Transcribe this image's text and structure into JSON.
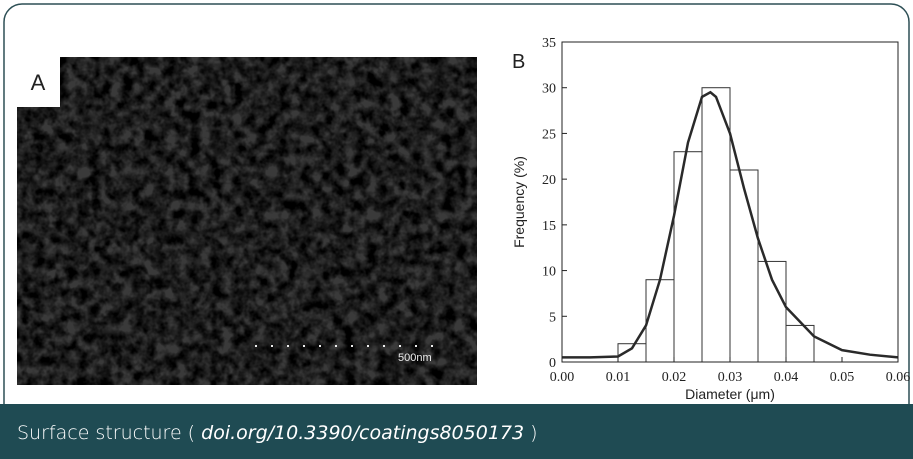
{
  "panel_a": {
    "label": "A",
    "scale_bar": "500nm"
  },
  "chart_data": {
    "type": "histogram",
    "panel_label": "B",
    "xlabel": "Diameter  (μm)",
    "ylabel": "Frequency  (%)",
    "bins": [
      0.01,
      0.015,
      0.02,
      0.025,
      0.03,
      0.035,
      0.04,
      0.045
    ],
    "counts": [
      2,
      9,
      23,
      30,
      21,
      11,
      4
    ],
    "color": "#ffffff",
    "edge_color": "#333333",
    "fit": {
      "type": "line",
      "color": "#2a2a2a",
      "x": [
        0,
        0.005,
        0.01,
        0.0125,
        0.015,
        0.0175,
        0.02,
        0.0225,
        0.025,
        0.0265,
        0.0275,
        0.03,
        0.0325,
        0.035,
        0.0375,
        0.04,
        0.045,
        0.05,
        0.055,
        0.06
      ],
      "y": [
        0.5,
        0.5,
        0.6,
        1.5,
        4,
        9,
        16,
        24,
        29,
        29.5,
        29,
        25,
        19,
        13.5,
        9,
        6,
        2.8,
        1.3,
        0.8,
        0.5
      ]
    },
    "xlim": [
      0,
      0.06
    ],
    "xticks": [
      {
        "value": 0,
        "label": "0.00"
      },
      {
        "value": 0.01,
        "label": "0.01"
      },
      {
        "value": 0.02,
        "label": "0.02"
      },
      {
        "value": 0.03,
        "label": "0.03"
      },
      {
        "value": 0.04,
        "label": "0.04"
      },
      {
        "value": 0.05,
        "label": "0.05"
      },
      {
        "value": 0.06,
        "label": "0.06"
      }
    ],
    "ylim": [
      0,
      35
    ],
    "yticks": [
      0,
      5,
      10,
      15,
      20,
      25,
      30,
      35
    ]
  },
  "caption": {
    "text": "Surface structure (",
    "doi": "doi.org/10.3390/coatings8050173",
    "close": ")"
  }
}
